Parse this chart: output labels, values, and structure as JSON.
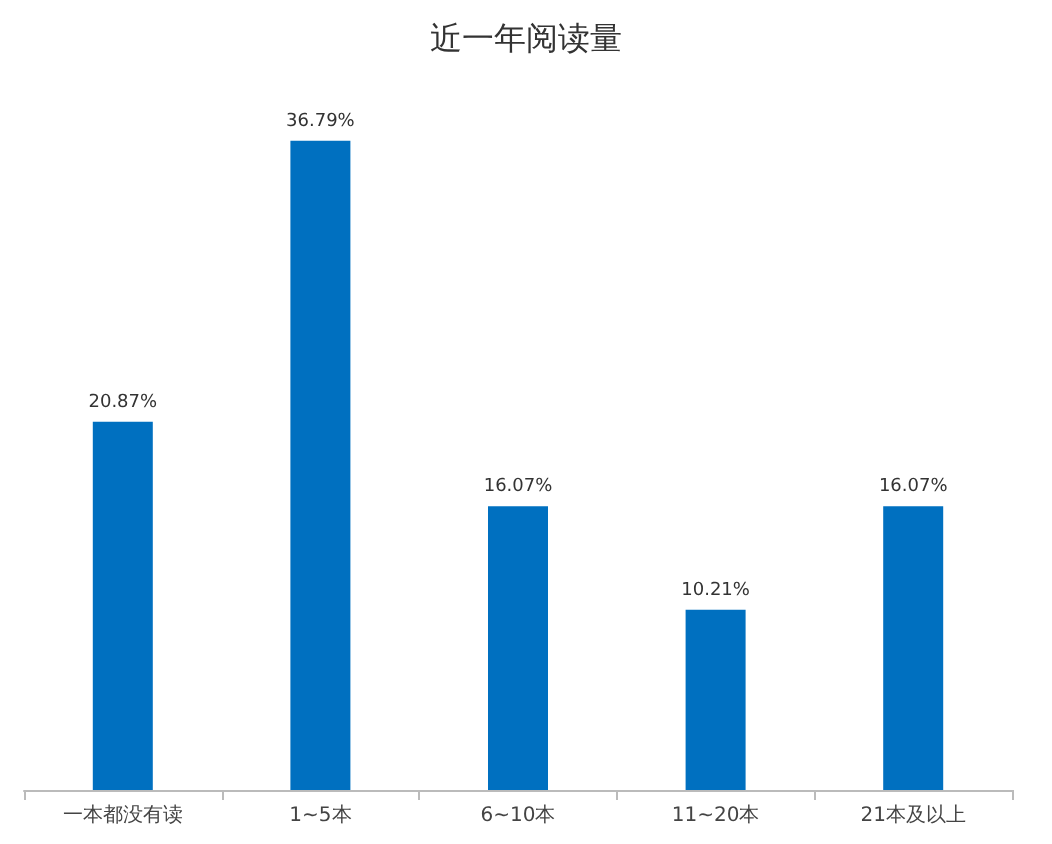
{
  "chart_data": {
    "type": "bar",
    "title": "近一年阅读量",
    "categories": [
      "一本都没有读",
      "1~5本",
      "6~10本",
      "11~20本",
      "21本及以上"
    ],
    "values": [
      20.87,
      36.79,
      16.07,
      10.21,
      16.07
    ],
    "value_labels": [
      "20.87%",
      "36.79%",
      "16.07%",
      "10.21%",
      "16.07%"
    ],
    "color": "#0070c0"
  }
}
